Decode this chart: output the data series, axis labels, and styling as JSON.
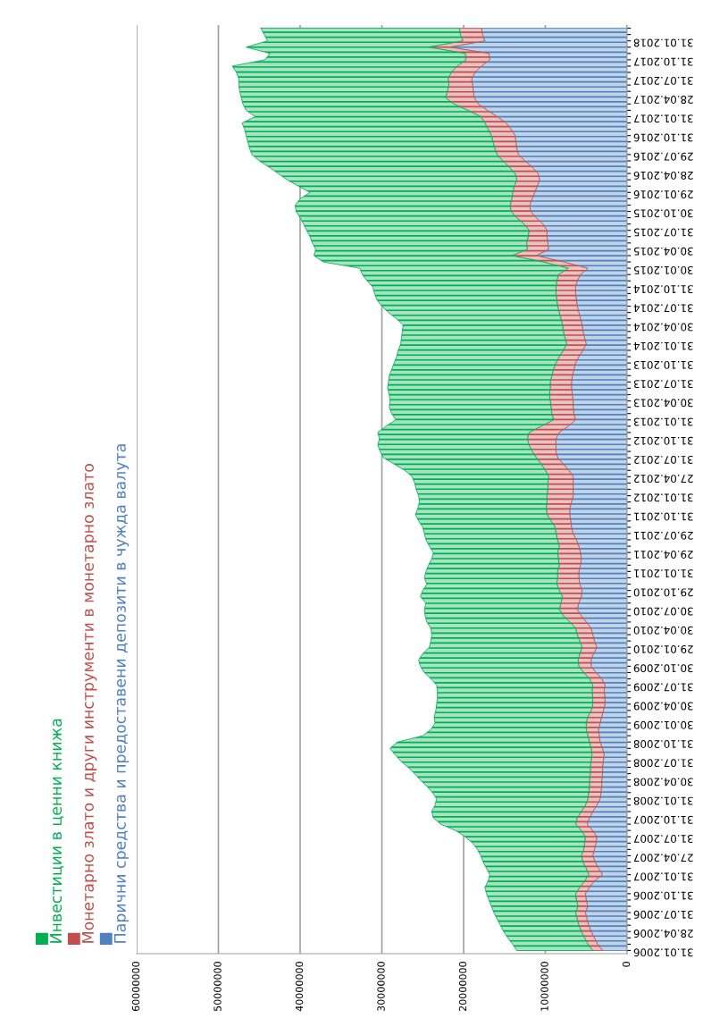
{
  "chart_data": {
    "type": "area",
    "stacked": true,
    "orientation": "horizontal",
    "grid": "x",
    "legend": "left",
    "categories": [
      null,
      null,
      "31.01.2018",
      null,
      null,
      "31.10.2017",
      null,
      null,
      "31.07.2017",
      null,
      null,
      "28.04.2017",
      null,
      null,
      "31.01.2017",
      null,
      null,
      "31.10.2016",
      null,
      null,
      "29.07.2016",
      null,
      null,
      "28.04.2016",
      null,
      null,
      "29.01.2016",
      null,
      null,
      "30.10.2015",
      null,
      null,
      "31.07.2015",
      null,
      null,
      "30.04.2015",
      null,
      null,
      "30.01.2015",
      null,
      null,
      "31.10.2014",
      null,
      null,
      "31.07.2014",
      null,
      null,
      "30.04.2014",
      null,
      null,
      "31.01.2014",
      null,
      null,
      "31.10.2013",
      null,
      null,
      "31.07.2013",
      null,
      null,
      "30.04.2013",
      null,
      null,
      "31.01.2013",
      null,
      null,
      "31.10.2012",
      null,
      null,
      "31.07.2012",
      null,
      null,
      "27.04.2012",
      null,
      null,
      "31.01.2012",
      null,
      null,
      "31.10.2011",
      null,
      null,
      "29.07.2011",
      null,
      null,
      "29.04.2011",
      null,
      null,
      "31.01.2011",
      null,
      null,
      "29.10.2010",
      null,
      null,
      "30.07.2010",
      null,
      null,
      "30.04.2010",
      null,
      null,
      "29.01.2010",
      null,
      null,
      "30.10.2009",
      null,
      null,
      "31.07.2009",
      null,
      null,
      "30.04.2009",
      null,
      null,
      "30.01.2009",
      null,
      null,
      "31.10.2008",
      null,
      null,
      "31.07.2008",
      null,
      null,
      "30.04.2008",
      null,
      null,
      "31.01.2008",
      null,
      null,
      "31.10.2007",
      null,
      null,
      "31.07.2007",
      null,
      null,
      "27.04.2007",
      null,
      null,
      "31.01.2007",
      null,
      null,
      "31.10.2006",
      null,
      null,
      "31.07.2006",
      null,
      null,
      "28.04.2006",
      null,
      null,
      "31.01.2006"
    ],
    "series": [
      {
        "name": "Парични средства и предоставени депозити в чужда валута",
        "color": "#4f81bd",
        "values": [
          17800000,
          17700000,
          17400000,
          21700000,
          16900000,
          16800000,
          17800000,
          18600000,
          19000000,
          18900000,
          18800000,
          18700000,
          18200000,
          17100000,
          15900000,
          14800000,
          14200000,
          13700000,
          13600000,
          13500000,
          13300000,
          12500000,
          11600000,
          10900000,
          10700000,
          11000000,
          11300000,
          11600000,
          11900000,
          11800000,
          11100000,
          10300000,
          9800000,
          9800000,
          9700000,
          9600000,
          11100000,
          7800000,
          4800000,
          5700000,
          6100000,
          6300000,
          6300000,
          6200000,
          6100000,
          5900000,
          5700000,
          5500000,
          5400000,
          5200000,
          5000000,
          5400000,
          5900000,
          6300000,
          6500000,
          6700000,
          6800000,
          6800000,
          6700000,
          6600000,
          6600000,
          6500000,
          6300000,
          7200000,
          8300000,
          8700000,
          8700000,
          8700000,
          8500000,
          7800000,
          7100000,
          6600000,
          6600000,
          6600000,
          6600000,
          6800000,
          7000000,
          7000000,
          6900000,
          6800000,
          6600000,
          6200000,
          5900000,
          5700000,
          5600000,
          5700000,
          5900000,
          5900000,
          5800000,
          5500000,
          5600000,
          5900000,
          6100000,
          5600000,
          5000000,
          4400000,
          4200000,
          4000000,
          3700000,
          4100000,
          4400000,
          4400000,
          3800000,
          3100000,
          2700000,
          2800000,
          2700000,
          2700000,
          2900000,
          3100000,
          3300000,
          3500000,
          3400000,
          3300000,
          3000000,
          2800000,
          2900000,
          3000000,
          3000000,
          3100000,
          3100000,
          3200000,
          3300000,
          3700000,
          4200000,
          4600000,
          4900000,
          4200000,
          3700000,
          3800000,
          4000000,
          4200000,
          3900000,
          3500000,
          3000000,
          4000000,
          4600000,
          5100000,
          5000000,
          4800000,
          5100000,
          4900000,
          4700000,
          4400000,
          4000000,
          3600000,
          3000000
        ]
      },
      {
        "name": "Монетарно злато и други инструменти в монетарно злато",
        "color": "#c0504d",
        "values": [
          2700000,
          2700000,
          2700000,
          2600000,
          2900000,
          2900000,
          3000000,
          2900000,
          2900000,
          2900000,
          3200000,
          3500000,
          3000000,
          2400000,
          2000000,
          2600000,
          2800000,
          2900000,
          2800000,
          2700000,
          2600000,
          2700000,
          2800000,
          2800000,
          2800000,
          2800000,
          2700000,
          2500000,
          2400000,
          2400000,
          2400000,
          2300000,
          2200000,
          2300000,
          2600000,
          2600000,
          3000000,
          2500000,
          2400000,
          2700000,
          2500000,
          2400000,
          2400000,
          2400000,
          2400000,
          2400000,
          2400000,
          2400000,
          2400000,
          2400000,
          2400000,
          2400000,
          2400000,
          2400000,
          2500000,
          2500000,
          2600000,
          2600000,
          2800000,
          2800000,
          2700000,
          2700000,
          2700000,
          3300000,
          3700000,
          3500000,
          3300000,
          2900000,
          2600000,
          2700000,
          2900000,
          3000000,
          3100000,
          3100000,
          3200000,
          3000000,
          2900000,
          2800000,
          2400000,
          2000000,
          2100000,
          2300000,
          2400000,
          2800000,
          2800000,
          2600000,
          2600000,
          2600000,
          2800000,
          2800000,
          2300000,
          2200000,
          2200000,
          2200000,
          2000000,
          1900000,
          1900000,
          1800000,
          1800000,
          1700000,
          1600000,
          1500000,
          1500000,
          1500000,
          1500000,
          1500000,
          1500000,
          1500000,
          1500000,
          1700000,
          1700000,
          1500000,
          1400000,
          1300000,
          1400000,
          1500000,
          1500000,
          1500000,
          1500000,
          1500000,
          1500000,
          1500000,
          1500000,
          1400000,
          1400000,
          1500000,
          1400000,
          1400000,
          1400000,
          1400000,
          1300000,
          1400000,
          1500000,
          1500000,
          1700000,
          1200000,
          1200000,
          1200000,
          1200000,
          1200000,
          1200000,
          1200000,
          1200000,
          1200000,
          1200000,
          1200000,
          1200000
        ]
      },
      {
        "name": "Инвестиции в ценни книжа",
        "color": "#00b050",
        "values": [
          24300000,
          24000000,
          23900000,
          22300000,
          23900000,
          24600000,
          27500000,
          26300000,
          25600000,
          25700000,
          25400000,
          25000000,
          25800000,
          27100000,
          27600000,
          29700000,
          29800000,
          30000000,
          30000000,
          30000000,
          30000000,
          29800000,
          29400000,
          29000000,
          28100000,
          26400000,
          24800000,
          25900000,
          26300000,
          26300000,
          26500000,
          27000000,
          27200000,
          26700000,
          26200000,
          25900000,
          24200000,
          26900000,
          25500000,
          24000000,
          23200000,
          22400000,
          22200000,
          22000000,
          21500000,
          20900000,
          20100000,
          19500000,
          19700000,
          20000000,
          20300000,
          20200000,
          19900000,
          19800000,
          19800000,
          19900000,
          19800000,
          19900000,
          19600000,
          19600000,
          19800000,
          19600000,
          19300000,
          19000000,
          18500000,
          18100000,
          18500000,
          18600000,
          18700000,
          18000000,
          17200000,
          16700000,
          16300000,
          16100000,
          15700000,
          15600000,
          15700000,
          16100000,
          16200000,
          16200000,
          16100000,
          16100000,
          15900000,
          15200000,
          15500000,
          16000000,
          16100000,
          16300000,
          15900000,
          16700000,
          17400000,
          16500000,
          16500000,
          16900000,
          17500000,
          17700000,
          17800000,
          18200000,
          18700000,
          19200000,
          19500000,
          19400000,
          19500000,
          19400000,
          19100000,
          18900000,
          19000000,
          19100000,
          19000000,
          18800000,
          18500000,
          19000000,
          20200000,
          23500000,
          24600000,
          24100000,
          23300000,
          22300000,
          21500000,
          20700000,
          19900000,
          19100000,
          18500000,
          18400000,
          18300000,
          17600000,
          16500000,
          15400000,
          14700000,
          13700000,
          13000000,
          12300000,
          12200000,
          12200000,
          12100000,
          11800000,
          11600000,
          10900000,
          10700000,
          10600000,
          10000000,
          9800000,
          9600000,
          9500000,
          9400000,
          9200000,
          9300000
        ]
      }
    ],
    "xlim": [
      60000000,
      0
    ],
    "xticks": [
      0,
      10000000,
      20000000,
      30000000,
      40000000,
      50000000,
      60000000
    ]
  }
}
